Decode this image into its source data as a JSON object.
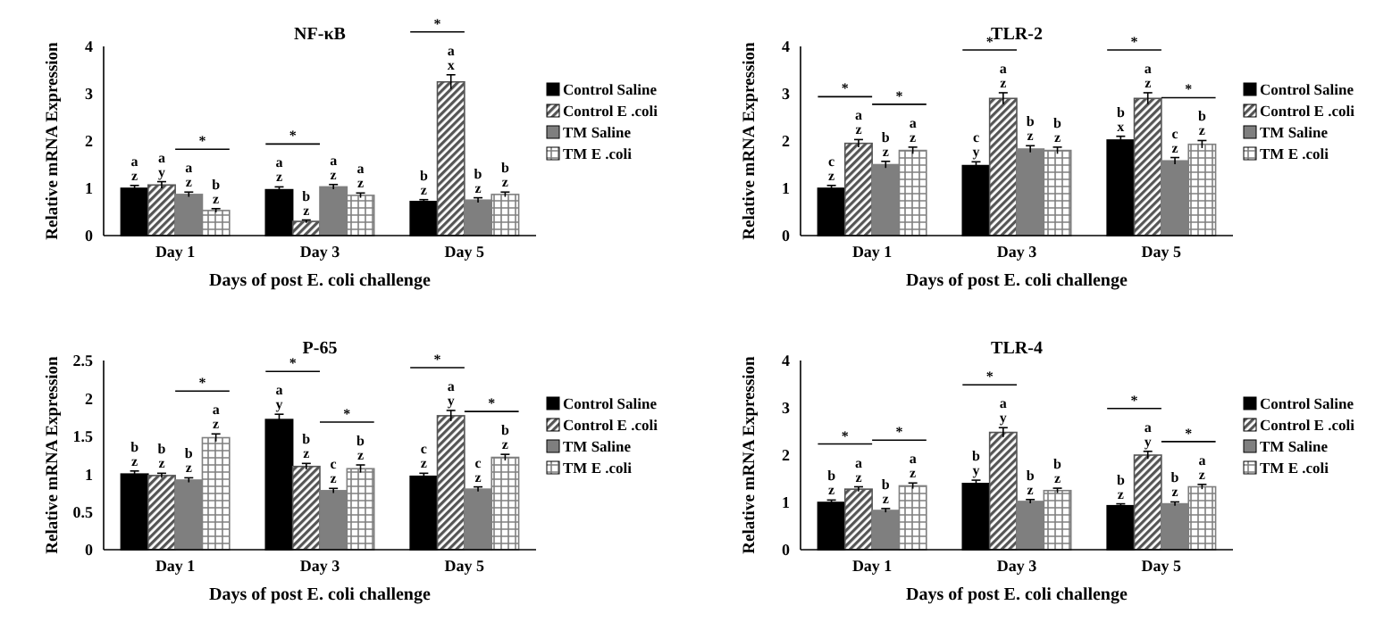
{
  "chart_data": [
    {
      "type": "bar",
      "title": "NF-κB",
      "xlabel": "Days of post E. coli challenge",
      "ylabel": "Relative mRNA Expression",
      "categories": [
        "Day 1",
        "Day 3",
        "Day 5"
      ],
      "ylim": [
        0,
        4
      ],
      "yticks": [
        0,
        1,
        2,
        3,
        4
      ],
      "legend": "right",
      "series": [
        {
          "name": "Control Saline",
          "color": "#000000",
          "values": [
            1.0,
            0.97,
            0.72
          ],
          "errors": [
            0.06,
            0.06,
            0.04
          ],
          "value_labels": [
            "a\nz",
            "a\nz",
            "b\nz"
          ]
        },
        {
          "name": "Control E .coli",
          "color": "#555555",
          "values": [
            1.07,
            0.3,
            3.25
          ],
          "errors": [
            0.07,
            0.03,
            0.15
          ],
          "value_labels": [
            "a\ny",
            "b\nz",
            "a\nx"
          ]
        },
        {
          "name": "TM Saline",
          "color": "#7f7f7f",
          "values": [
            0.87,
            1.03,
            0.75
          ],
          "errors": [
            0.05,
            0.05,
            0.05
          ],
          "value_labels": [
            "a\nz",
            "a\nz",
            "b\nz"
          ]
        },
        {
          "name": "TM E .coli",
          "color": "#7f7f7f",
          "values": [
            0.53,
            0.85,
            0.87
          ],
          "errors": [
            0.04,
            0.05,
            0.05
          ],
          "value_labels": [
            "b\nz",
            "a\nz",
            "b\nz"
          ]
        }
      ],
      "annotations": [
        "*",
        "*",
        "*"
      ]
    },
    {
      "type": "bar",
      "title": "TLR-2",
      "xlabel": "Days of post E. coli challenge",
      "ylabel": "Relative mRNA Expression",
      "categories": [
        "Day 1",
        "Day 3",
        "Day 5"
      ],
      "ylim": [
        0,
        4
      ],
      "yticks": [
        0,
        1,
        2,
        3,
        4
      ],
      "legend": "right",
      "series": [
        {
          "name": "Control Saline",
          "color": "#000000",
          "values": [
            1.0,
            1.48,
            2.02
          ],
          "errors": [
            0.06,
            0.08,
            0.08
          ],
          "value_labels": [
            "c\nz",
            "c\ny",
            "b\nx"
          ]
        },
        {
          "name": "Control E .coli",
          "color": "#555555",
          "values": [
            1.95,
            2.9,
            2.9
          ],
          "errors": [
            0.08,
            0.12,
            0.12
          ],
          "value_labels": [
            "a\nz",
            "a\nz",
            "a\nz"
          ]
        },
        {
          "name": "TM Saline",
          "color": "#7f7f7f",
          "values": [
            1.5,
            1.83,
            1.58
          ],
          "errors": [
            0.07,
            0.07,
            0.07
          ],
          "value_labels": [
            "b\nz",
            "b\nz",
            "c\nz"
          ]
        },
        {
          "name": "TM E .coli",
          "color": "#7f7f7f",
          "values": [
            1.8,
            1.8,
            1.93
          ],
          "errors": [
            0.07,
            0.07,
            0.08
          ],
          "value_labels": [
            "a\nz",
            "b\nz",
            "b\nz"
          ]
        }
      ],
      "annotations": [
        "*",
        "*",
        "*",
        "*",
        "*"
      ]
    },
    {
      "type": "bar",
      "title": "P-65",
      "xlabel": "Days of post E. coli challenge",
      "ylabel": "Relative mRNA Expression",
      "categories": [
        "Day 1",
        "Day 3",
        "Day 5"
      ],
      "ylim": [
        0,
        2.5
      ],
      "yticks": [
        0,
        0.5,
        1,
        1.5,
        2,
        2.5
      ],
      "legend": "right",
      "series": [
        {
          "name": "Control Saline",
          "color": "#000000",
          "values": [
            1.0,
            1.72,
            0.97
          ],
          "errors": [
            0.04,
            0.07,
            0.04
          ],
          "value_labels": [
            "b\nz",
            "a\ny",
            "c\nz"
          ]
        },
        {
          "name": "Control E .coli",
          "color": "#555555",
          "values": [
            0.98,
            1.1,
            1.77
          ],
          "errors": [
            0.03,
            0.04,
            0.07
          ],
          "value_labels": [
            "b\nz",
            "b\nz",
            "a\ny"
          ]
        },
        {
          "name": "TM Saline",
          "color": "#7f7f7f",
          "values": [
            0.92,
            0.78,
            0.8
          ],
          "errors": [
            0.03,
            0.03,
            0.03
          ],
          "value_labels": [
            "b\nz",
            "c\nz",
            "c\nz"
          ]
        },
        {
          "name": "TM E .coli",
          "color": "#7f7f7f",
          "values": [
            1.48,
            1.07,
            1.22
          ],
          "errors": [
            0.05,
            0.05,
            0.04
          ],
          "value_labels": [
            "a\nz",
            "b\nz",
            "b\nz"
          ]
        }
      ],
      "annotations": [
        "*",
        "*",
        "*",
        "*",
        "*"
      ]
    },
    {
      "type": "bar",
      "title": "TLR-4",
      "xlabel": "Days of post E. coli challenge",
      "ylabel": "Relative mRNA Expression",
      "categories": [
        "Day 1",
        "Day 3",
        "Day 5"
      ],
      "ylim": [
        0,
        4
      ],
      "yticks": [
        0,
        1,
        2,
        3,
        4
      ],
      "legend": "right",
      "series": [
        {
          "name": "Control Saline",
          "color": "#000000",
          "values": [
            1.0,
            1.4,
            0.93
          ],
          "errors": [
            0.05,
            0.07,
            0.04
          ],
          "value_labels": [
            "b\nz",
            "b\ny",
            "b\nz"
          ]
        },
        {
          "name": "Control E .coli",
          "color": "#555555",
          "values": [
            1.28,
            2.48,
            2.0
          ],
          "errors": [
            0.05,
            0.1,
            0.08
          ],
          "value_labels": [
            "a\nz",
            "a\ny",
            "a\ny"
          ]
        },
        {
          "name": "TM Saline",
          "color": "#7f7f7f",
          "values": [
            0.83,
            1.02,
            0.97
          ],
          "errors": [
            0.04,
            0.04,
            0.04
          ],
          "value_labels": [
            "b\nz",
            "b\nz",
            "b\nz"
          ]
        },
        {
          "name": "TM E .coli",
          "color": "#7f7f7f",
          "values": [
            1.35,
            1.25,
            1.33
          ],
          "errors": [
            0.06,
            0.05,
            0.05
          ],
          "value_labels": [
            "a\nz",
            "b\nz",
            "a\nz"
          ]
        }
      ],
      "annotations": [
        "*",
        "*",
        "*",
        "*",
        "*"
      ]
    }
  ]
}
